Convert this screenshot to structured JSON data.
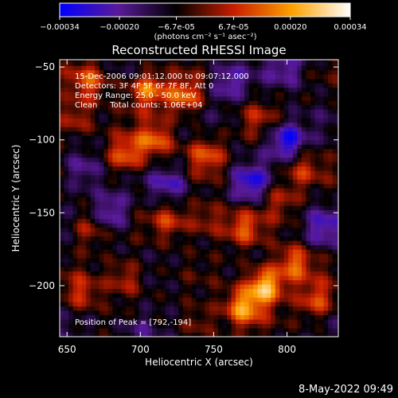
{
  "chart_data": {
    "type": "heatmap",
    "title": "Reconstructed RHESSI Image",
    "xlabel": "Heliocentric X (arcsec)",
    "ylabel": "Heliocentric Y (arcsec)",
    "xlim": [
      645,
      835
    ],
    "ylim": [
      -235,
      -45
    ],
    "xticks": [
      650,
      700,
      750,
      800
    ],
    "yticks": [
      -50,
      -100,
      -150,
      -200
    ],
    "colorbar": {
      "range": [
        -0.00034,
        0.00034
      ],
      "tick_labels": [
        "-0.00034",
        "-0.00020",
        "-6.7e-05",
        "6.7e-05",
        "0.00020",
        "0.00034"
      ],
      "tick_values": [
        -0.00034,
        -0.0002,
        -6.7e-05,
        6.7e-05,
        0.0002,
        0.00034
      ],
      "units_label": "(photons cm⁻² s⁻¹ asec⁻²)",
      "colors": [
        "#0000ff",
        "#5a1a9a",
        "#000000",
        "#c81e00",
        "#ffa000",
        "#ffffff"
      ]
    },
    "annotations": [
      "15-Dec-2006 09:01:12.000 to 09:07:12.000",
      "Detectors: 3F 4F 5F 6F 7F 8F, Att 0",
      "Energy Range: 25.0 - 50.0 keV",
      "Clean     Total counts: 1.06E+04"
    ],
    "peak_label": "Position of Peak = [792,-194]",
    "peak": [
      792,
      -194
    ],
    "source_blobs": [
      {
        "x": 785,
        "y": -200,
        "intensity": 0.00034
      },
      {
        "x": 770,
        "y": -215,
        "intensity": 0.00026
      },
      {
        "x": 805,
        "y": -185,
        "intensity": 0.00022
      },
      {
        "x": 820,
        "y": -210,
        "intensity": 0.00018
      },
      {
        "x": 770,
        "y": -160,
        "intensity": 0.00018
      },
      {
        "x": 705,
        "y": -65,
        "intensity": 0.00024
      },
      {
        "x": 730,
        "y": -70,
        "intensity": 0.00022
      },
      {
        "x": 690,
        "y": -110,
        "intensity": 0.00022
      },
      {
        "x": 710,
        "y": -100,
        "intensity": 0.0002
      },
      {
        "x": 665,
        "y": -60,
        "intensity": 0.00018
      },
      {
        "x": 655,
        "y": -85,
        "intensity": 0.00016
      },
      {
        "x": 745,
        "y": -110,
        "intensity": 0.00018
      },
      {
        "x": 720,
        "y": -155,
        "intensity": 0.00016
      },
      {
        "x": 745,
        "y": -155,
        "intensity": 0.00014
      },
      {
        "x": 665,
        "y": -160,
        "intensity": 0.00014
      },
      {
        "x": 690,
        "y": -195,
        "intensity": 0.00016
      },
      {
        "x": 660,
        "y": -205,
        "intensity": 0.00014
      },
      {
        "x": 740,
        "y": -225,
        "intensity": 0.00012
      },
      {
        "x": 795,
        "y": -140,
        "intensity": 0.00012
      },
      {
        "x": 810,
        "y": -120,
        "intensity": 0.00014
      },
      {
        "x": 780,
        "y": -85,
        "intensity": 0.0001
      },
      {
        "x": 800,
        "y": -100,
        "intensity": -0.00024
      },
      {
        "x": 775,
        "y": -130,
        "intensity": -0.0002
      },
      {
        "x": 680,
        "y": -150,
        "intensity": -0.00018
      },
      {
        "x": 720,
        "y": -130,
        "intensity": -0.00016
      },
      {
        "x": 760,
        "y": -60,
        "intensity": -0.00016
      },
      {
        "x": 660,
        "y": -120,
        "intensity": -0.00014
      },
      {
        "x": 825,
        "y": -160,
        "intensity": -0.00014
      },
      {
        "x": 700,
        "y": -230,
        "intensity": -0.00012
      },
      {
        "x": 800,
        "y": -50,
        "intensity": -0.00012
      }
    ]
  },
  "footer": {
    "timestamp": "8-May-2022 09:49"
  }
}
